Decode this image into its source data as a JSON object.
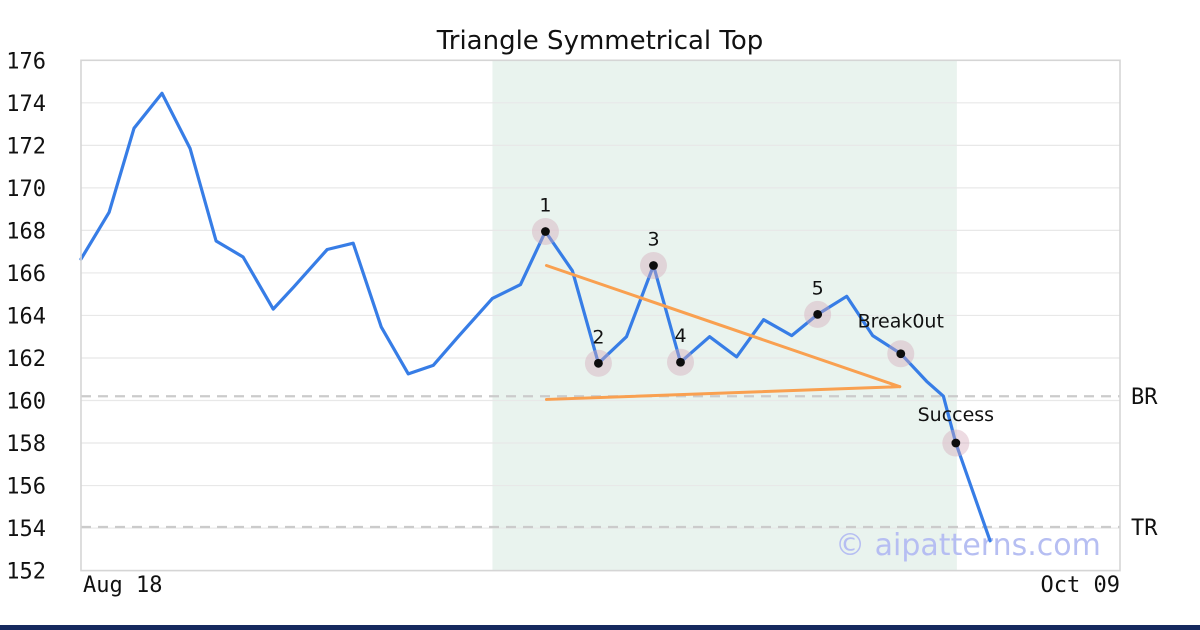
{
  "title": "Triangle Symmetrical Top",
  "watermark": "© aipatterns.com",
  "x_axis": {
    "start_label": "Aug 18",
    "end_label": "Oct 09"
  },
  "y_axis": {
    "min": 152,
    "max": 176,
    "tick_step": 2
  },
  "levels": [
    {
      "label": "BR",
      "value": 160.2
    },
    {
      "label": "TR",
      "value": 154.05
    }
  ],
  "pattern_window": {
    "x_start": 0.396,
    "x_end": 0.843
  },
  "colors": {
    "line": "#377de6",
    "trendline": "#f9a050",
    "shade": "#e9f3ee",
    "grid": "#e8e8e8",
    "frame": "#d5d5d5",
    "level_dash": "#cbcbcb",
    "marker": "#0d0d0d",
    "halo": "rgba(213,170,187,0.42)",
    "watermark": "#b6bef2",
    "bottom_bar": "#15295e",
    "text": "#111111"
  },
  "chart_data": {
    "type": "line",
    "title": "Triangle Symmetrical Top",
    "xlabel": "",
    "ylabel": "",
    "x_unit": "fraction_of_time_axis",
    "x_range_labels": [
      "Aug 18",
      "Oct 09"
    ],
    "ylim": [
      152,
      176
    ],
    "grid": "horizontal",
    "series": [
      {
        "name": "price",
        "points": [
          [
            0.0,
            166.65
          ],
          [
            0.027,
            168.85
          ],
          [
            0.051,
            172.8
          ],
          [
            0.06,
            173.35
          ],
          [
            0.078,
            174.45
          ],
          [
            0.105,
            171.85
          ],
          [
            0.13,
            167.5
          ],
          [
            0.156,
            166.75
          ],
          [
            0.185,
            164.3
          ],
          [
            0.205,
            165.35
          ],
          [
            0.237,
            167.1
          ],
          [
            0.262,
            167.4
          ],
          [
            0.289,
            163.45
          ],
          [
            0.315,
            161.25
          ],
          [
            0.339,
            161.65
          ],
          [
            0.363,
            163.0
          ],
          [
            0.396,
            164.8
          ],
          [
            0.423,
            165.45
          ],
          [
            0.447,
            167.95
          ],
          [
            0.473,
            166.1
          ],
          [
            0.498,
            161.75
          ],
          [
            0.525,
            163.0
          ],
          [
            0.551,
            166.35
          ],
          [
            0.577,
            161.8
          ],
          [
            0.605,
            163.0
          ],
          [
            0.631,
            162.05
          ],
          [
            0.657,
            163.8
          ],
          [
            0.684,
            163.05
          ],
          [
            0.709,
            164.05
          ],
          [
            0.737,
            164.9
          ],
          [
            0.762,
            163.05
          ],
          [
            0.789,
            162.2
          ],
          [
            0.814,
            160.9
          ],
          [
            0.83,
            160.2
          ],
          [
            0.842,
            158.0
          ],
          [
            0.875,
            153.4
          ]
        ]
      }
    ],
    "trendlines": [
      {
        "name": "upper-trendline",
        "from": [
          0.448,
          166.35
        ],
        "to": [
          0.788,
          160.65
        ]
      },
      {
        "name": "lower-trendline",
        "from": [
          0.448,
          160.05
        ],
        "to": [
          0.788,
          160.65
        ]
      }
    ],
    "annotations": [
      {
        "label": "1",
        "x": 0.447,
        "y": 167.95,
        "dy": -20
      },
      {
        "label": "2",
        "x": 0.498,
        "y": 161.75,
        "dy": -20
      },
      {
        "label": "3",
        "x": 0.551,
        "y": 166.35,
        "dy": -20
      },
      {
        "label": "4",
        "x": 0.577,
        "y": 161.8,
        "dy": -20
      },
      {
        "label": "5",
        "x": 0.709,
        "y": 164.05,
        "dy": -20
      },
      {
        "label": "Break0ut",
        "x": 0.789,
        "y": 162.2,
        "dy": -26
      },
      {
        "label": "Success",
        "x": 0.842,
        "y": 158.0,
        "dy": -22
      }
    ]
  }
}
